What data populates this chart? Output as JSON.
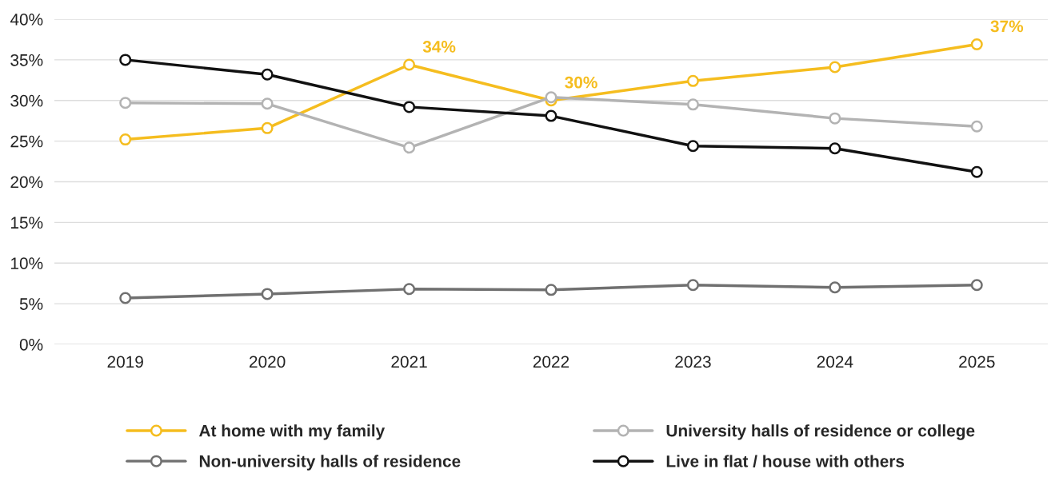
{
  "chart_data": {
    "type": "line",
    "categories": [
      "2019",
      "2020",
      "2021",
      "2022",
      "2023",
      "2024",
      "2025"
    ],
    "series": [
      {
        "name": "At home with my family",
        "color": "#f5bd1f",
        "values": [
          25.2,
          26.6,
          34.4,
          30.0,
          32.4,
          34.1,
          36.9
        ],
        "value_labels": [
          null,
          null,
          "34%",
          "30%",
          null,
          null,
          "37%"
        ]
      },
      {
        "name": "University halls of residence or college",
        "color": "#b3b3b3",
        "values": [
          29.7,
          29.6,
          24.2,
          30.4,
          29.5,
          27.8,
          26.8
        ]
      },
      {
        "name": "Non-university halls of residence",
        "color": "#707070",
        "values": [
          5.7,
          6.2,
          6.8,
          6.7,
          7.3,
          7.0,
          7.3
        ]
      },
      {
        "name": "Live in flat / house with others",
        "color": "#111111",
        "values": [
          35.0,
          33.2,
          29.2,
          28.1,
          24.4,
          24.1,
          21.2
        ]
      }
    ],
    "ylim": [
      0,
      40
    ],
    "yticks": [
      {
        "value": 0,
        "label": "0%"
      },
      {
        "value": 5,
        "label": "5%"
      },
      {
        "value": 10,
        "label": "10%"
      },
      {
        "value": 15,
        "label": "15%"
      },
      {
        "value": 20,
        "label": "20%"
      },
      {
        "value": 25,
        "label": "25%"
      },
      {
        "value": 30,
        "label": "30%"
      },
      {
        "value": 35,
        "label": "35%"
      },
      {
        "value": 40,
        "label": "40%"
      }
    ],
    "grid": "y",
    "legend": "bottom",
    "marker": "circle",
    "line_style": "solid"
  }
}
